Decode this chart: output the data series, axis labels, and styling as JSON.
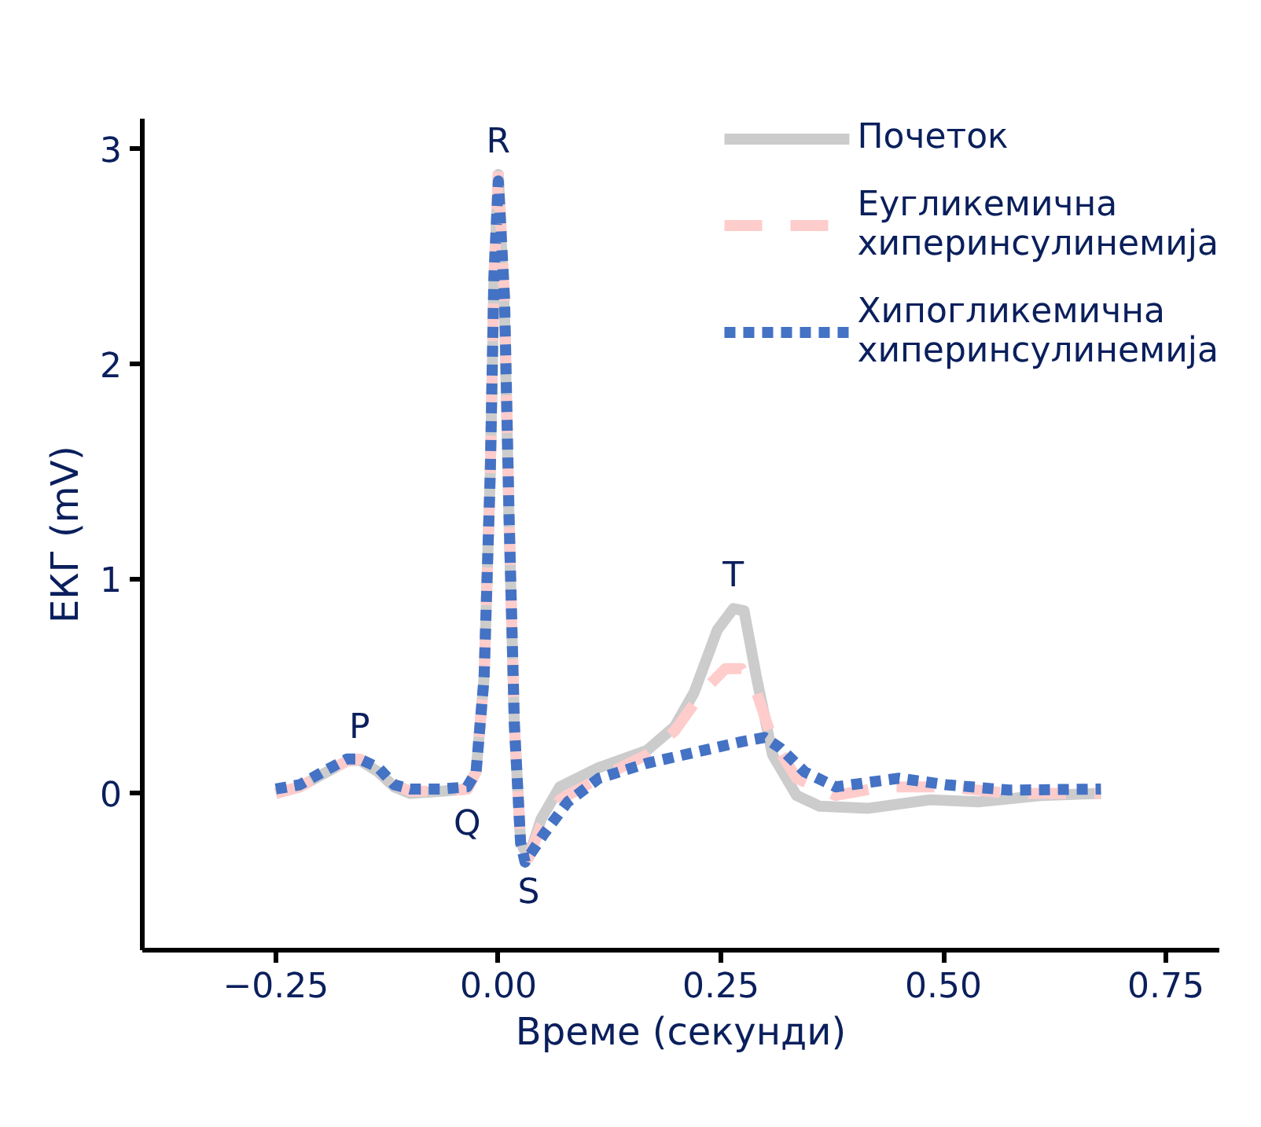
{
  "chart_data": {
    "type": "line",
    "xlabel": "Време (секунди)",
    "ylabel": "ЕКГ (mV)",
    "xlim": [
      -0.4,
      0.81
    ],
    "ylim": [
      -0.73,
      3.14
    ],
    "xticks": [
      {
        "value": -0.25,
        "label": "−0.25"
      },
      {
        "value": 0,
        "label": "0.00"
      },
      {
        "value": 0.25,
        "label": "0.25"
      },
      {
        "value": 0.5,
        "label": "0.50"
      },
      {
        "value": 0.75,
        "label": "0.75"
      }
    ],
    "yticks": [
      0,
      1,
      2,
      3
    ],
    "grid": false,
    "legend": "top right",
    "annotations": [
      {
        "text": "P",
        "x": -0.156,
        "y": 0.155
      },
      {
        "text": "Q",
        "x": -0.035,
        "y": 0.02
      },
      {
        "text": "R",
        "x": 0.0,
        "y": 2.88
      },
      {
        "text": "S",
        "x": 0.034,
        "y": -0.3
      },
      {
        "text": "T",
        "x": 0.264,
        "y": 0.86
      }
    ],
    "series": [
      {
        "name": "Почеток",
        "color": "#cccccc",
        "line_style": "solid",
        "x": [
          -0.25,
          -0.223,
          -0.197,
          -0.17,
          -0.156,
          -0.135,
          -0.117,
          -0.099,
          -0.064,
          -0.035,
          -0.025,
          -0.016,
          -0.009,
          -0.005,
          0.0,
          0.007,
          0.012,
          0.018,
          0.025,
          0.034,
          0.048,
          0.069,
          0.113,
          0.167,
          0.198,
          0.22,
          0.246,
          0.264,
          0.276,
          0.29,
          0.308,
          0.335,
          0.361,
          0.415,
          0.485,
          0.539,
          0.609,
          0.677
        ],
        "values": [
          0.0,
          0.03,
          0.09,
          0.15,
          0.155,
          0.1,
          0.03,
          0.0,
          0.01,
          0.02,
          0.1,
          0.54,
          1.5,
          2.37,
          2.88,
          2.22,
          1.27,
          0.32,
          -0.23,
          -0.3,
          -0.12,
          0.03,
          0.12,
          0.2,
          0.31,
          0.47,
          0.76,
          0.86,
          0.85,
          0.54,
          0.18,
          -0.01,
          -0.06,
          -0.07,
          -0.03,
          -0.04,
          -0.01,
          0.0
        ]
      },
      {
        "name": "Еугликемична хиперинсулинемија",
        "color": "#ffcccc",
        "line_style": "dashed",
        "x": [
          -0.25,
          -0.223,
          -0.197,
          -0.17,
          -0.156,
          -0.135,
          -0.117,
          -0.099,
          -0.064,
          -0.035,
          -0.025,
          -0.016,
          -0.009,
          -0.005,
          0.0,
          0.007,
          0.012,
          0.018,
          0.025,
          0.034,
          0.048,
          0.069,
          0.113,
          0.167,
          0.198,
          0.229,
          0.255,
          0.273,
          0.29,
          0.308,
          0.335,
          0.379,
          0.432,
          0.503,
          0.574,
          0.677
        ],
        "values": [
          0.0,
          0.03,
          0.09,
          0.15,
          0.16,
          0.12,
          0.04,
          0.01,
          0.01,
          0.02,
          0.1,
          0.54,
          1.5,
          2.4,
          2.9,
          2.3,
          1.3,
          0.32,
          -0.23,
          -0.3,
          -0.15,
          -0.03,
          0.07,
          0.18,
          0.29,
          0.47,
          0.58,
          0.58,
          0.47,
          0.25,
          0.07,
          -0.01,
          0.03,
          0.03,
          0.0,
          0.0
        ]
      },
      {
        "name": "Хипогликемична хиперинсулинемија",
        "color": "#4472c4",
        "line_style": "dotted",
        "x": [
          -0.25,
          -0.223,
          -0.197,
          -0.17,
          -0.156,
          -0.135,
          -0.117,
          -0.099,
          -0.064,
          -0.035,
          -0.025,
          -0.016,
          -0.009,
          -0.005,
          0.0,
          0.007,
          0.012,
          0.018,
          0.025,
          0.03,
          0.051,
          0.078,
          0.113,
          0.167,
          0.22,
          0.273,
          0.299,
          0.317,
          0.344,
          0.379,
          0.432,
          0.45,
          0.503,
          0.574,
          0.677
        ],
        "values": [
          0.02,
          0.04,
          0.1,
          0.16,
          0.16,
          0.12,
          0.04,
          0.02,
          0.02,
          0.03,
          0.1,
          0.54,
          1.5,
          2.4,
          2.85,
          2.3,
          1.3,
          0.32,
          -0.23,
          -0.32,
          -0.19,
          -0.04,
          0.07,
          0.14,
          0.19,
          0.24,
          0.26,
          0.21,
          0.1,
          0.03,
          0.06,
          0.07,
          0.04,
          0.015,
          0.02
        ]
      }
    ]
  }
}
